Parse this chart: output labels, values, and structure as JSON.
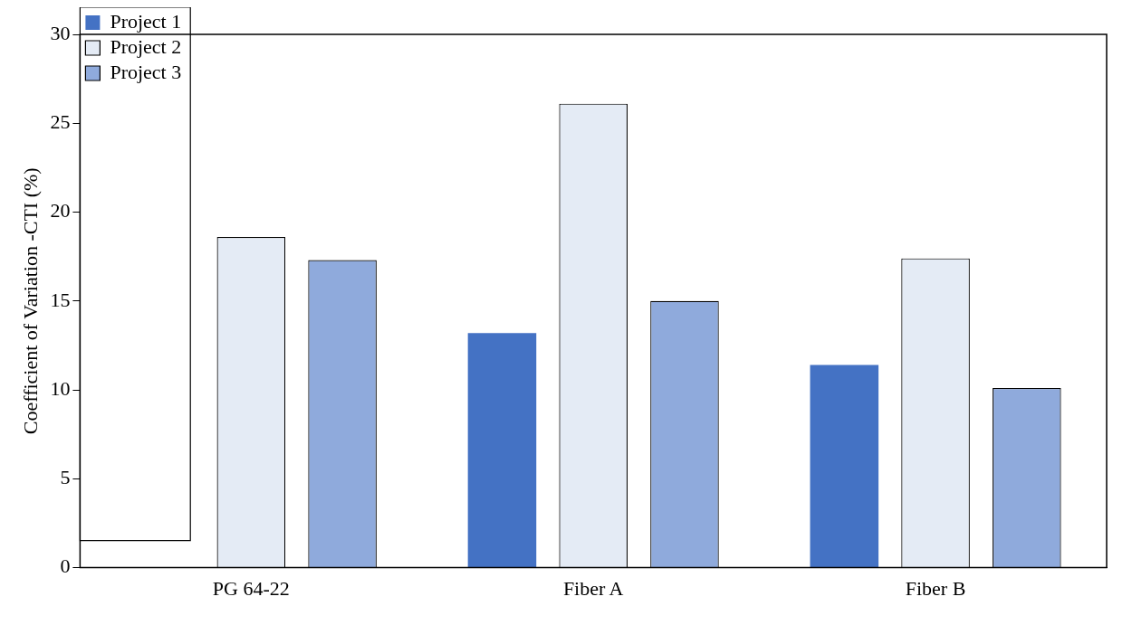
{
  "chart_data": {
    "type": "bar",
    "ylabel": "Coefficient of Variation -CTI (%)",
    "categories": [
      "PG 64-22",
      "Fiber A",
      "Fiber B"
    ],
    "series": [
      {
        "name": "Project 1",
        "color": "#4472c4",
        "values": [
          null,
          13.2,
          11.4
        ]
      },
      {
        "name": "Project 2",
        "color": "#e4ebf5",
        "values": [
          18.6,
          26.1,
          17.4
        ]
      },
      {
        "name": "Project 3",
        "color": "#8faadc",
        "values": [
          17.3,
          15.0,
          10.1
        ]
      }
    ],
    "ylim": [
      0,
      30
    ],
    "yticks": [
      0,
      5,
      10,
      15,
      20,
      25,
      30
    ],
    "grid": false,
    "legend": "top left"
  }
}
